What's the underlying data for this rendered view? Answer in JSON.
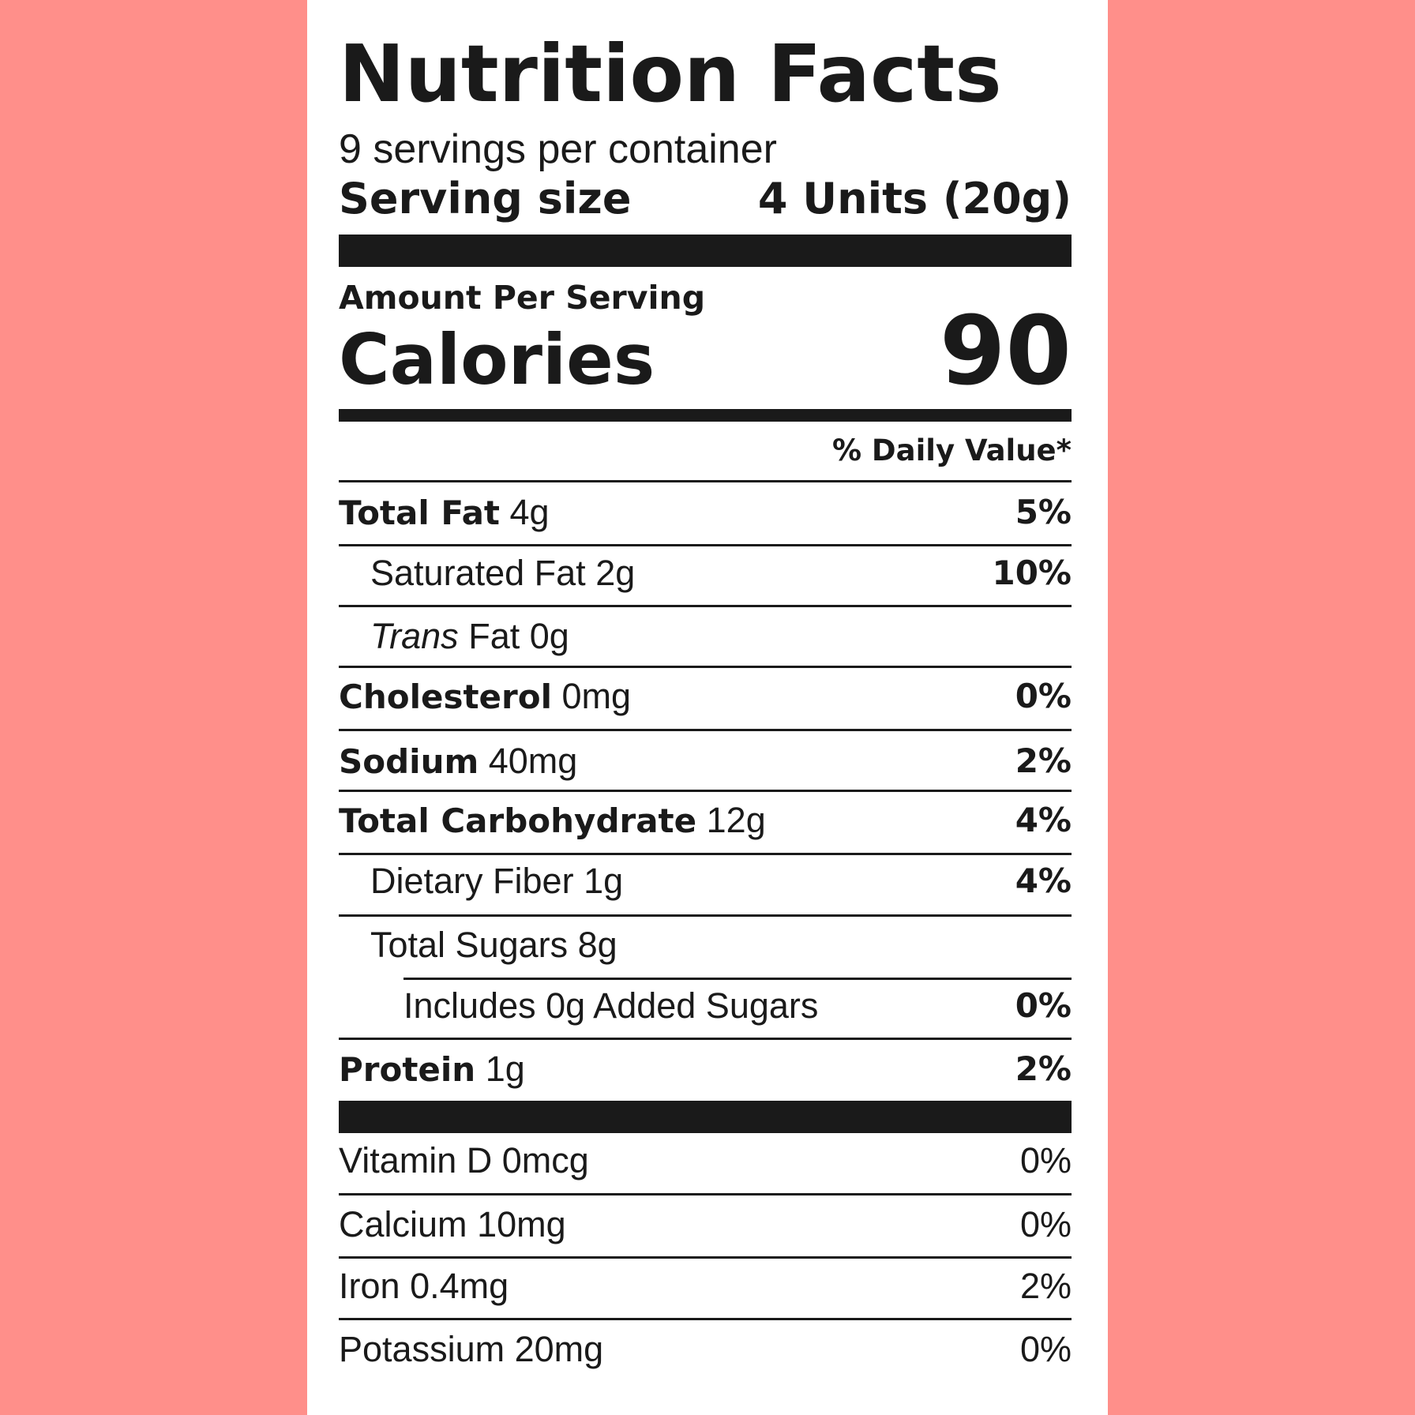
{
  "title": "Nutrition Facts",
  "servings": "9 servings per container",
  "serving_size": {
    "label": "Serving size",
    "value": "4 Units (20g)"
  },
  "amount_per_serving": "Amount Per Serving",
  "calories": {
    "label": "Calories",
    "value": 90
  },
  "daily_value_header": "% Daily Value*",
  "nutrients": [
    {
      "name": "Total Fat",
      "amount": "4g",
      "daily_value": "5%"
    },
    {
      "name": "Saturated Fat",
      "amount": "2g",
      "daily_value": "10%"
    },
    {
      "prefix": "Trans",
      "name": "Fat",
      "amount": "0g"
    },
    {
      "name": "Cholesterol",
      "amount": "0mg",
      "daily_value": "0%"
    },
    {
      "name": "Sodium",
      "amount": "40mg",
      "daily_value": "2%"
    },
    {
      "name": "Total Carbohydrate",
      "amount": "12g",
      "daily_value": "4%"
    },
    {
      "name": "Dietary Fiber",
      "amount": "1g",
      "daily_value": "4%"
    },
    {
      "name": "Total Sugars",
      "amount": "8g"
    },
    {
      "name": "Includes 0g Added Sugars",
      "daily_value": "0%"
    },
    {
      "name": "Protein",
      "amount": "1g",
      "daily_value": "2%"
    }
  ],
  "vitamins": [
    {
      "name": "Vitamin D",
      "amount": "0mcg",
      "daily_value": "0%"
    },
    {
      "name": "Calcium",
      "amount": "10mg",
      "daily_value": "0%"
    },
    {
      "name": "Iron",
      "amount": "0.4mg",
      "daily_value": "2%"
    },
    {
      "name": "Potassium",
      "amount": "20mg",
      "daily_value": "0%"
    }
  ]
}
